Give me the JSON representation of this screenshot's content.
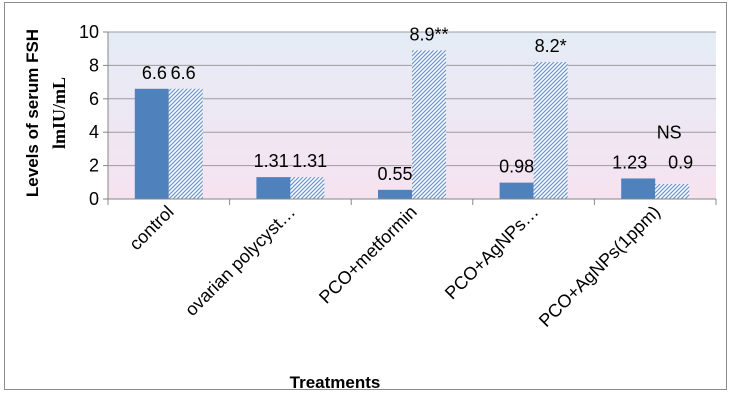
{
  "chart_data": {
    "type": "bar",
    "title": "",
    "xlabel": "Treatments",
    "ylabel": "Levels of serum FSH",
    "ylabel_unit": "lmIU/mL",
    "ylim": [
      0,
      10
    ],
    "yticks": [
      "0",
      "2",
      "4",
      "6",
      "8",
      "10"
    ],
    "grid": true,
    "legend": "none",
    "categories": [
      "control",
      "ovarian polycyst…",
      "PCO+metformin",
      "PCO+AgNPs…",
      "PCO+AgNPs(1ppm)"
    ],
    "series": [
      {
        "values": [
          6.6,
          1.31,
          0.55,
          0.98,
          1.23
        ],
        "labels": [
          "6.6",
          "1.31",
          "0.55",
          "0.98",
          "1.23"
        ],
        "color": "#4f81bd",
        "fill": "solid"
      },
      {
        "values": [
          6.6,
          1.31,
          8.9,
          8.2,
          0.9
        ],
        "labels": [
          "6.6",
          "1.31",
          "8.9**",
          "8.2*",
          "0.9"
        ],
        "color": "#4f81bd",
        "fill": "diagonal-hatch"
      }
    ],
    "annotations": [
      {
        "category": "PCO+AgNPs(1ppm)",
        "text": "NS"
      }
    ],
    "plot_background": [
      "#e4ecf6",
      "#f6e3f0"
    ]
  }
}
